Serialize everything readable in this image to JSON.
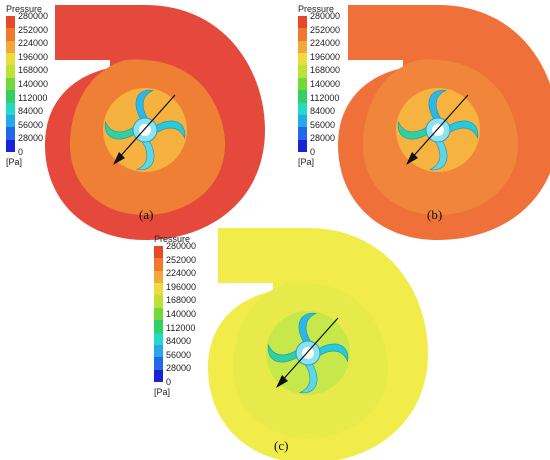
{
  "legend": {
    "title": "Pressure",
    "unit": "[Pa]",
    "ticks": [
      "280000",
      "252000",
      "224000",
      "196000",
      "168000",
      "140000",
      "112000",
      "84000",
      "56000",
      "28000",
      "0"
    ],
    "colors": [
      "#e8482a",
      "#f07a2b",
      "#f4a73a",
      "#eddc3d",
      "#bde235",
      "#73d83a",
      "#31d060",
      "#25d9c8",
      "#27a8ea",
      "#2368e8",
      "#1a22d8"
    ]
  },
  "panels": [
    {
      "caption": "(a)",
      "outer_color": "#e5493c",
      "inner_color": "#ee7f34",
      "core_color": "#f6b23e",
      "inlet_color": "#e5493c"
    },
    {
      "caption": "(b)",
      "outer_color": "#f0703a",
      "inner_color": "#f1853b",
      "core_color": "#f7b340",
      "inlet_color": "#f0703a"
    },
    {
      "caption": "(c)",
      "outer_color": "#f2ec4a",
      "inner_color": "#e8e94a",
      "core_color": "#c7e84b",
      "inlet_color": "#f2ec4a"
    }
  ]
}
